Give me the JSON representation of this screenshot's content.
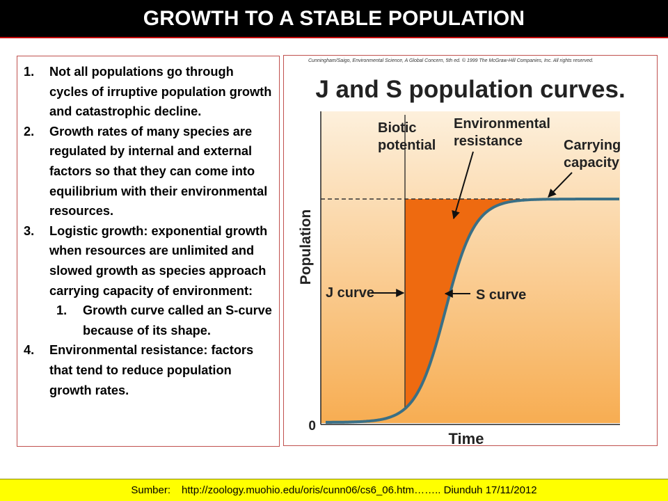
{
  "slide": {
    "title": "GROWTH TO A STABLE POPULATION",
    "source_label": "Sumber:",
    "source_text": "http://zoology.muohio.edu/oris/cunn06/cs6_06.htm…….. Diunduh 17/11/2012"
  },
  "points": [
    {
      "num": "1.",
      "text": "Not all populations go through cycles of irruptive population growth and catastrophic decline.",
      "level": 1
    },
    {
      "num": "2.",
      "text": "Growth rates of many species are regulated by internal and external factors so that they can come into equilibrium with their environmental resources.",
      "level": 1
    },
    {
      "num": "3.",
      "text": "Logistic growth: exponential growth when resources are unlimited and slowed growth as species approach carrying capacity of environment:",
      "level": 1
    },
    {
      "num": "1.",
      "text": "Growth curve called an S-curve because of its shape.",
      "level": 2
    },
    {
      "num": "4.",
      "text": "Environmental resistance: factors that tend to reduce population growth rates.",
      "level": 1
    }
  ],
  "chart_data": {
    "type": "line",
    "credit": "Cunningham/Saigo, Environmental Science, A Global Concern, 5th ed. © 1999 The McGraw-Hill Companies, Inc. All rights reserved.",
    "title": "J and S population curves.",
    "xlabel": "Time",
    "ylabel": "Population",
    "y_tick_labels": [
      "0"
    ],
    "carrying_capacity_line": "dashed",
    "annotations": [
      "Biotic potential",
      "Environmental resistance",
      "Carrying capacity",
      "J curve",
      "S curve"
    ],
    "series": [
      {
        "name": "J curve"
      },
      {
        "name": "S curve"
      }
    ],
    "colors": {
      "shaded_region": "#ee6a10",
      "curve": "#3a6f85",
      "background_top": "#fdf0dc",
      "background_bottom": "#f7ad52"
    }
  }
}
